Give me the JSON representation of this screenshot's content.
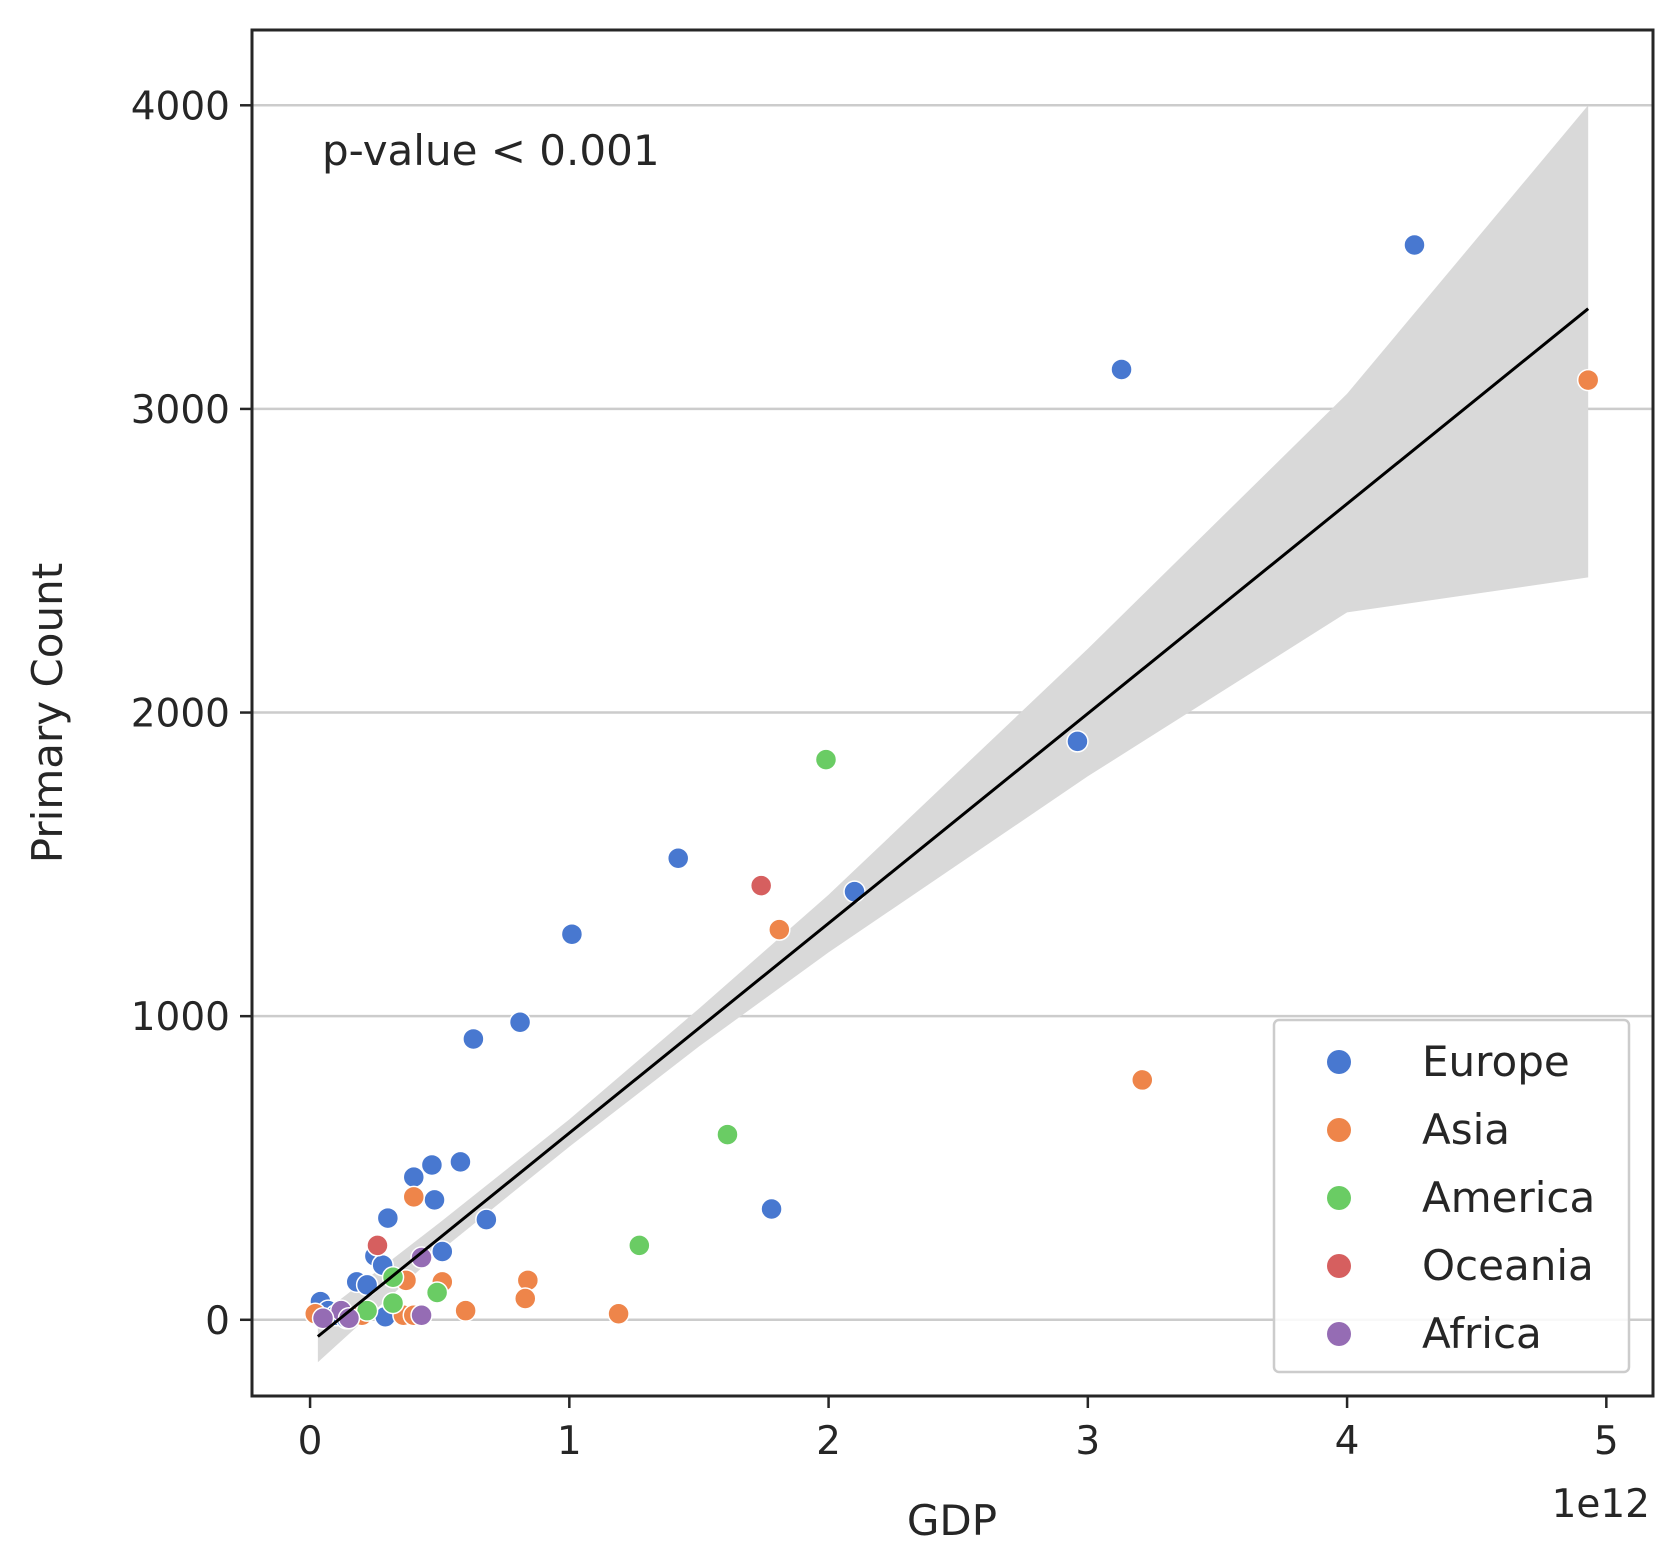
{
  "chart_data": {
    "type": "scatter",
    "xlabel": "GDP",
    "ylabel": "Primary Count",
    "x_offset_label": "1e12",
    "annotation": "p-value < 0.001",
    "xlim": [
      -0.224,
      5.18
    ],
    "ylim": [
      -251,
      4248
    ],
    "xticks": [
      0,
      1,
      2,
      3,
      4,
      5
    ],
    "yticks": [
      0,
      1000,
      2000,
      3000,
      4000
    ],
    "grid": true,
    "legend": "lower right",
    "series": [
      {
        "name": "Europe",
        "color": "#4878d0",
        "x": [
          4.26,
          3.13,
          2.96,
          2.1,
          1.42,
          1.01,
          0.81,
          0.63,
          1.78,
          0.58,
          0.47,
          0.4,
          0.48,
          0.68,
          0.3,
          0.51,
          0.25,
          0.28,
          0.18,
          0.22,
          0.04,
          0.07,
          0.1,
          0.29,
          0.14
        ],
        "values": [
          3540,
          3130,
          1905,
          1410,
          1520,
          1270,
          980,
          925,
          365,
          520,
          510,
          470,
          395,
          330,
          335,
          225,
          210,
          180,
          125,
          115,
          60,
          30,
          15,
          10,
          5
        ]
      },
      {
        "name": "Asia",
        "color": "#ee854a",
        "x": [
          4.93,
          3.21,
          1.81,
          0.4,
          0.37,
          0.51,
          0.84,
          0.83,
          0.6,
          1.19,
          0.36,
          0.4,
          0.2,
          0.02
        ],
        "values": [
          3095,
          790,
          1285,
          405,
          130,
          125,
          130,
          70,
          30,
          20,
          15,
          15,
          15,
          20
        ]
      },
      {
        "name": "America",
        "color": "#6acc64",
        "x": [
          1.99,
          1.61,
          1.27,
          0.49,
          0.32,
          0.32,
          0.22
        ],
        "values": [
          1845,
          610,
          245,
          90,
          140,
          55,
          30
        ]
      },
      {
        "name": "Oceania",
        "color": "#d65f5f",
        "x": [
          1.74,
          0.26
        ],
        "values": [
          1430,
          245
        ]
      },
      {
        "name": "Africa",
        "color": "#956cb4",
        "x": [
          0.43,
          0.12,
          0.05,
          0.15,
          0.43
        ],
        "values": [
          205,
          30,
          5,
          5,
          15
        ]
      }
    ],
    "regression": {
      "color": "#000000",
      "x": [
        0.03,
        4.93
      ],
      "values": [
        -55,
        3330
      ]
    },
    "confidence_band": {
      "color": "#d9d9d9",
      "x": [
        0.03,
        0.5,
        1.0,
        1.5,
        2.0,
        3.0,
        4.0,
        4.93
      ],
      "upper": [
        10,
        320,
        660,
        1025,
        1400,
        2210,
        3050,
        4000
      ],
      "lower": [
        -140,
        225,
        570,
        900,
        1210,
        1790,
        2330,
        2445
      ]
    }
  }
}
